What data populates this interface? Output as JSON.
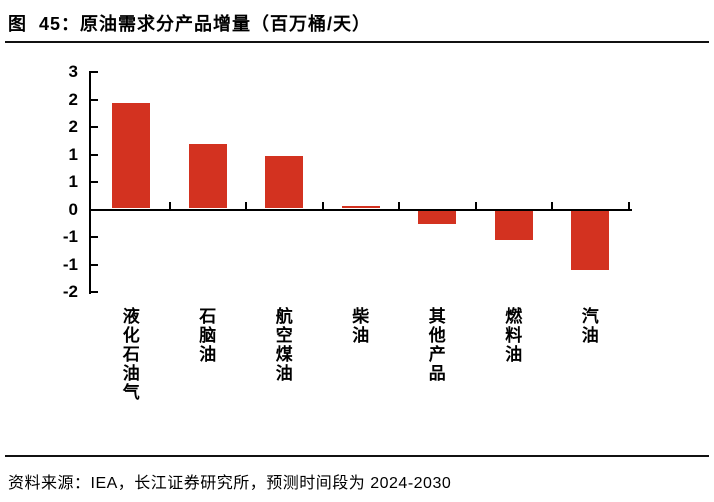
{
  "figure": {
    "title": "图  45：原油需求分产品增量（百万桶/天）",
    "source": "资料来源：IEA，长江证券研究所，预测时间段为 2024-2030"
  },
  "colors": {
    "bar": "#d33220",
    "axis": "#000000",
    "text": "#000000"
  },
  "chart_data": {
    "type": "bar",
    "title": "原油需求分产品增量（百万桶/天）",
    "xlabel": "",
    "ylabel": "",
    "unit": "百万桶/天",
    "categories": [
      "液化石油气",
      "石脑油",
      "航空煤油",
      "柴油",
      "其他产品",
      "燃料油",
      "汽油"
    ],
    "values": [
      2.3,
      1.4,
      1.15,
      0.05,
      -0.3,
      -0.65,
      -1.3
    ],
    "ylim": [
      -1.8,
      3.0
    ],
    "y_tick_step": 0.6,
    "y_tick_values": [
      3.0,
      2.4,
      1.8,
      1.2,
      0.6,
      0.0,
      -0.6,
      -1.2,
      -1.8
    ],
    "y_tick_labels": [
      "3",
      "2",
      "2",
      "1",
      "1",
      "0",
      "-1",
      "-1",
      "-2"
    ],
    "grid": false,
    "legend": false,
    "bar_color": "#d33220",
    "x_label_orientation": "vertical-upright",
    "ticks": "inward",
    "forecast_period": "2024-2030"
  }
}
